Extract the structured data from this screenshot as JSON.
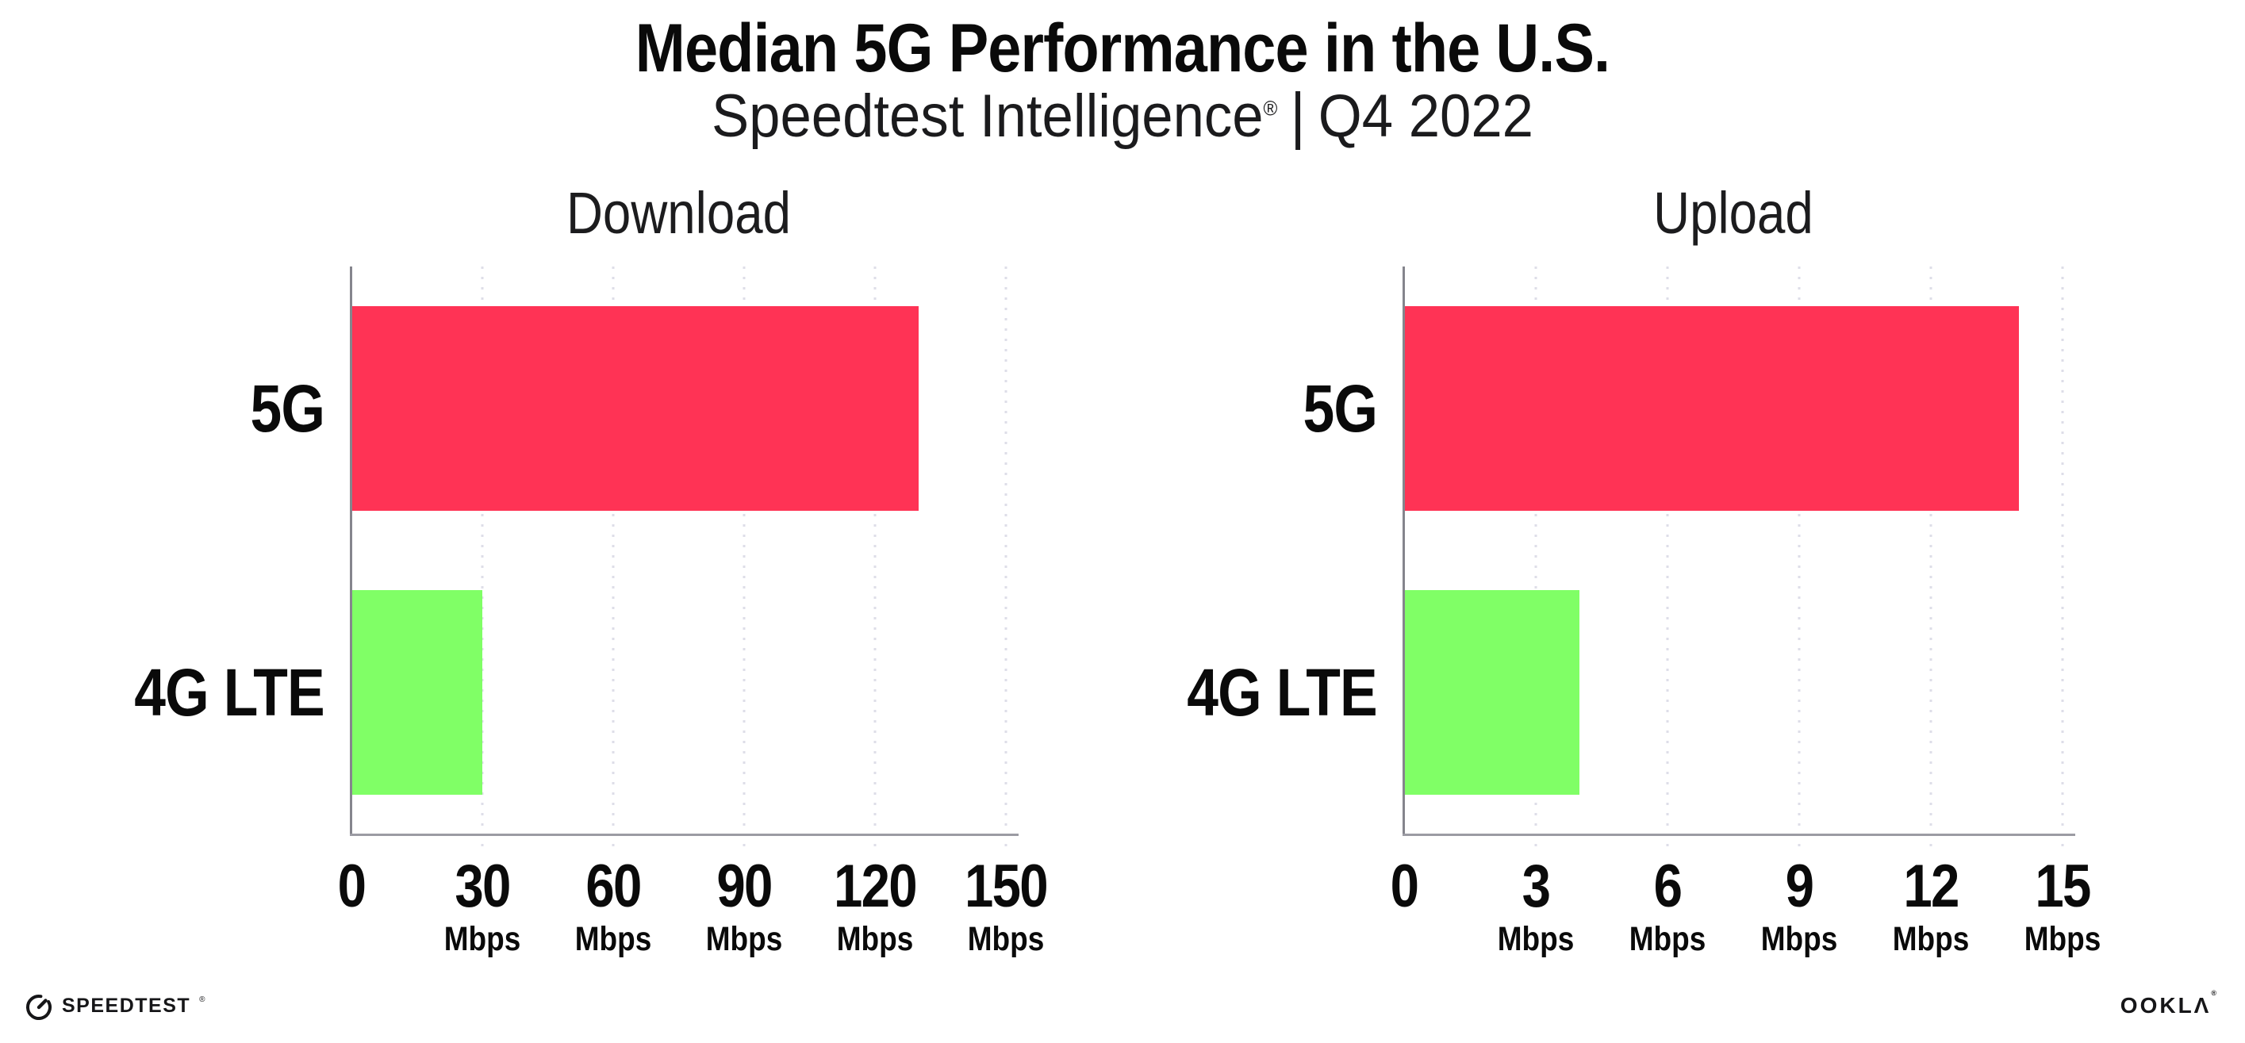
{
  "header": {
    "title": "Median 5G Performance in the U.S.",
    "subtitle_brand": "Speedtest Intelligence",
    "subtitle_reg": "®",
    "subtitle_sep": "|",
    "subtitle_period": "Q4 2022"
  },
  "colors": {
    "bar_5g": "#FF3355",
    "bar_4g_lte": "#80FF66",
    "gridline": "#DEDEE8",
    "axis_spine": "#9B9BA3",
    "text": "#0A0A0A",
    "background": "#FFFFFF"
  },
  "chart_data": [
    {
      "id": "download",
      "type": "bar",
      "orientation": "horizontal",
      "title": "Download",
      "categories": [
        "5G",
        "4G LTE"
      ],
      "values": [
        130,
        30
      ],
      "unit": "Mbps",
      "xlim": [
        0,
        150
      ],
      "xticks": [
        0,
        30,
        60,
        90,
        120,
        150
      ],
      "bar_colors": [
        "#FF3355",
        "#80FF66"
      ],
      "grid": "vertical-dotted",
      "legend": "none"
    },
    {
      "id": "upload",
      "type": "bar",
      "orientation": "horizontal",
      "title": "Upload",
      "categories": [
        "5G",
        "4G LTE"
      ],
      "values": [
        14,
        4
      ],
      "unit": "Mbps",
      "xlim": [
        0,
        15
      ],
      "xticks": [
        0,
        3,
        6,
        9,
        12,
        15
      ],
      "bar_colors": [
        "#FF3355",
        "#80FF66"
      ],
      "grid": "vertical-dotted",
      "legend": "none"
    }
  ],
  "footer": {
    "speedtest_text": "SPEEDTEST",
    "speedtest_reg": "®",
    "speedtest_icon": "gauge-icon",
    "ookla_text": "OOKLΛ",
    "ookla_reg": "®"
  }
}
